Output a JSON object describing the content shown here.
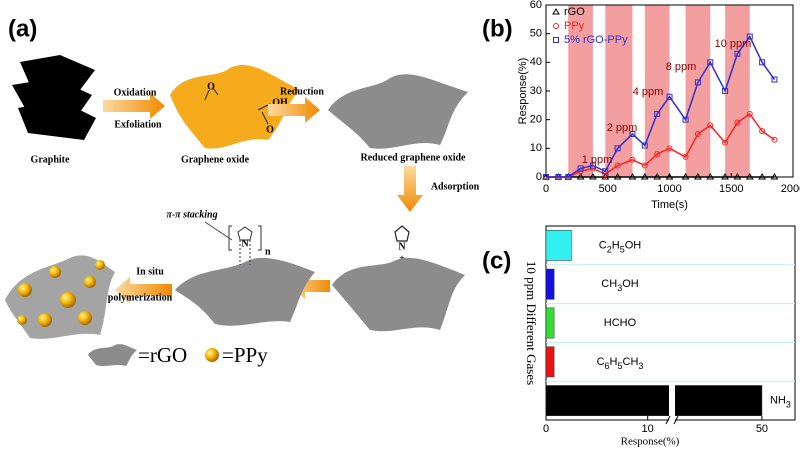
{
  "panel_a": {
    "label": "(a)",
    "step1_top": "Oxidation",
    "step1_bottom": "Exfoliation",
    "step2": "Reduction",
    "step3": "Adsorption",
    "step4_top": "In situ",
    "step4_bottom": "polymerization",
    "graphite": "Graphite",
    "graphene_oxide": "Graphene oxide",
    "reduced_graphene_oxide": "Reduced graphene oxide",
    "stacking": "π-π stacking",
    "plus": "+",
    "oh": "OH",
    "o": "O",
    "n": "N",
    "sub_n": "n",
    "legend_rgo": "=rGO",
    "legend_ppy": "=PPy"
  },
  "panel_b_label": "(b)",
  "panel_c_label": "(c)",
  "chart_data": [
    {
      "type": "line",
      "x_label": "Time(s)",
      "y_label": "Response(%)",
      "xlim": [
        0,
        2000
      ],
      "xticks": [
        0,
        500,
        1000,
        1500,
        2000
      ],
      "ylim": [
        0,
        60
      ],
      "yticks": [
        0,
        10,
        20,
        30,
        40,
        50,
        60
      ],
      "legend": "top-left",
      "shaded_color": "#f07f7f",
      "shaded_regions": [
        [
          180,
          380
        ],
        [
          480,
          700
        ],
        [
          800,
          1000
        ],
        [
          1130,
          1330
        ],
        [
          1450,
          1650
        ]
      ],
      "annotations": [
        "1 ppm",
        "2 ppm",
        "4 ppm",
        "8 ppm",
        "10 ppm"
      ],
      "annotation_color": "#8b0000",
      "x": [
        0,
        100,
        180,
        280,
        380,
        480,
        580,
        700,
        800,
        900,
        1000,
        1130,
        1230,
        1330,
        1450,
        1550,
        1650,
        1750,
        1850
      ],
      "series": [
        {
          "name": "rGO",
          "color": "#000000",
          "marker": "triangle",
          "values": [
            0,
            0,
            0,
            0,
            0,
            0,
            0,
            0,
            0,
            0,
            0,
            0,
            0,
            0,
            0,
            0,
            0,
            0,
            0
          ]
        },
        {
          "name": "PPy",
          "color": "#ff2020",
          "marker": "circle",
          "values": [
            0,
            0,
            0,
            2,
            3,
            1,
            4,
            6,
            4,
            8,
            10,
            7,
            15,
            18,
            12,
            19,
            22,
            16,
            13
          ]
        },
        {
          "name": "5% rGO-PPy",
          "color": "#3030d0",
          "marker": "square",
          "values": [
            0,
            0,
            0,
            3,
            4,
            2,
            10,
            15,
            11,
            22,
            28,
            20,
            33,
            40,
            30,
            43,
            49,
            40,
            34
          ]
        }
      ]
    },
    {
      "type": "hbar",
      "x_label": "Response(%)",
      "y_label": "10 ppm Different Gases",
      "categories": [
        "C2H5OH",
        "CH3OH",
        "HCHO",
        "C6H5CH3",
        "NH3"
      ],
      "values": [
        2.5,
        0.8,
        0.8,
        0.8,
        50
      ],
      "colors": [
        "#33f0f0",
        "#1010e0",
        "#33dd33",
        "#ee1111",
        "#000000"
      ],
      "xlim": [
        0,
        55
      ],
      "axis_break": [
        12,
        37
      ],
      "xticks": [
        0,
        10,
        50
      ],
      "grid_color": "#bfeef0"
    }
  ]
}
